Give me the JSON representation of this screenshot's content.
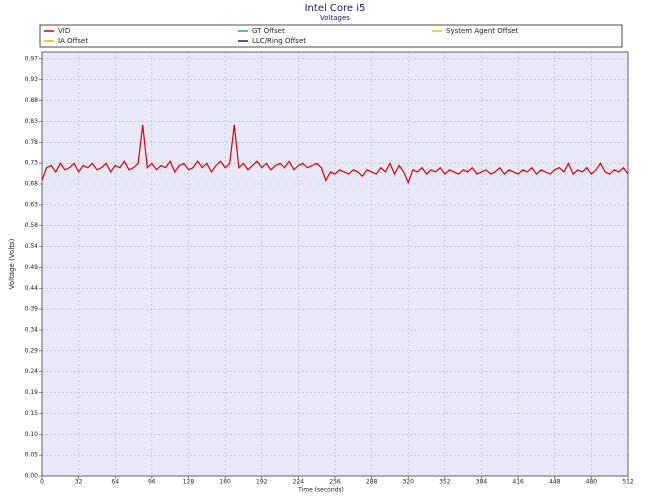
{
  "chart_data": {
    "type": "line",
    "title": "Intel Core i5",
    "subtitle": "Voltages",
    "x_label": "Time (seconds)",
    "y_label": "Voltage (Volts)",
    "xlim": [
      0,
      512
    ],
    "xticks": [
      0,
      32,
      64,
      96,
      128,
      160,
      192,
      224,
      256,
      288,
      320,
      352,
      384,
      416,
      448,
      480,
      512
    ],
    "ylim": [
      0,
      0.99
    ],
    "yticks": [
      {
        "value": 0,
        "label": "0.00"
      },
      {
        "value": 0.0487,
        "label": "0.05"
      },
      {
        "value": 0.0974,
        "label": "0.10"
      },
      {
        "value": 0.1461,
        "label": "0.15"
      },
      {
        "value": 0.1948,
        "label": "0.19"
      },
      {
        "value": 0.2435,
        "label": "0.24"
      },
      {
        "value": 0.2922,
        "label": "0.29"
      },
      {
        "value": 0.3409,
        "label": "0.34"
      },
      {
        "value": 0.3896,
        "label": "0.39"
      },
      {
        "value": 0.4383,
        "label": "0.44"
      },
      {
        "value": 0.487,
        "label": "0.49"
      },
      {
        "value": 0.5357,
        "label": "0.54"
      },
      {
        "value": 0.5844,
        "label": "0.58"
      },
      {
        "value": 0.6331,
        "label": "0.63"
      },
      {
        "value": 0.6818,
        "label": "0.68"
      },
      {
        "value": 0.7305,
        "label": "0.73"
      },
      {
        "value": 0.7792,
        "label": "0.78"
      },
      {
        "value": 0.8279,
        "label": "0.83"
      },
      {
        "value": 0.8766,
        "label": "0.88"
      },
      {
        "value": 0.9253,
        "label": "0.93"
      },
      {
        "value": 0.974,
        "label": "0.97"
      }
    ],
    "grid": true,
    "x": [
      0,
      4,
      8,
      12,
      16,
      20,
      24,
      28,
      32,
      36,
      40,
      44,
      48,
      52,
      56,
      60,
      64,
      68,
      72,
      76,
      80,
      84,
      88,
      92,
      96,
      100,
      104,
      108,
      112,
      116,
      120,
      124,
      128,
      132,
      136,
      140,
      144,
      148,
      152,
      156,
      160,
      164,
      168,
      172,
      176,
      180,
      184,
      188,
      192,
      196,
      200,
      204,
      208,
      212,
      216,
      220,
      224,
      228,
      232,
      236,
      240,
      244,
      248,
      252,
      256,
      260,
      264,
      268,
      272,
      276,
      280,
      284,
      288,
      292,
      296,
      300,
      304,
      308,
      312,
      316,
      320,
      324,
      328,
      332,
      336,
      340,
      344,
      348,
      352,
      356,
      360,
      364,
      368,
      372,
      376,
      380,
      384,
      388,
      392,
      396,
      400,
      404,
      408,
      412,
      416,
      420,
      424,
      428,
      432,
      436,
      440,
      444,
      448,
      452,
      456,
      460,
      464,
      468,
      472,
      476,
      480,
      484,
      488,
      492,
      496,
      500,
      504,
      508,
      512
    ],
    "series": [
      {
        "name": "VID",
        "color": "#e00000",
        "values": [
          0.69,
          0.72,
          0.725,
          0.71,
          0.73,
          0.715,
          0.72,
          0.73,
          0.71,
          0.725,
          0.72,
          0.73,
          0.715,
          0.72,
          0.73,
          0.71,
          0.725,
          0.72,
          0.735,
          0.715,
          0.72,
          0.73,
          0.82,
          0.72,
          0.73,
          0.715,
          0.725,
          0.72,
          0.735,
          0.71,
          0.725,
          0.73,
          0.715,
          0.72,
          0.735,
          0.72,
          0.73,
          0.71,
          0.725,
          0.735,
          0.72,
          0.73,
          0.82,
          0.72,
          0.73,
          0.715,
          0.725,
          0.735,
          0.72,
          0.73,
          0.715,
          0.725,
          0.73,
          0.72,
          0.735,
          0.715,
          0.725,
          0.73,
          0.72,
          0.725,
          0.73,
          0.72,
          0.69,
          0.71,
          0.705,
          0.715,
          0.71,
          0.705,
          0.715,
          0.71,
          0.7,
          0.715,
          0.71,
          0.705,
          0.72,
          0.71,
          0.73,
          0.705,
          0.725,
          0.71,
          0.685,
          0.715,
          0.71,
          0.72,
          0.705,
          0.715,
          0.71,
          0.72,
          0.705,
          0.715,
          0.71,
          0.705,
          0.715,
          0.71,
          0.72,
          0.705,
          0.71,
          0.715,
          0.705,
          0.71,
          0.72,
          0.705,
          0.715,
          0.71,
          0.705,
          0.715,
          0.71,
          0.72,
          0.705,
          0.715,
          0.71,
          0.705,
          0.715,
          0.72,
          0.71,
          0.73,
          0.705,
          0.715,
          0.71,
          0.72,
          0.705,
          0.715,
          0.73,
          0.71,
          0.705,
          0.715,
          0.71,
          0.72,
          0.705
        ]
      },
      {
        "name": "GT Offset",
        "color": "#3a8fd8"
      },
      {
        "name": "System Agent Offset",
        "color": "#c8d400"
      },
      {
        "name": "IA Offset",
        "color": "#e8b000"
      },
      {
        "name": "LLC/Ring Offset",
        "color": "#1a1a8c"
      }
    ]
  }
}
